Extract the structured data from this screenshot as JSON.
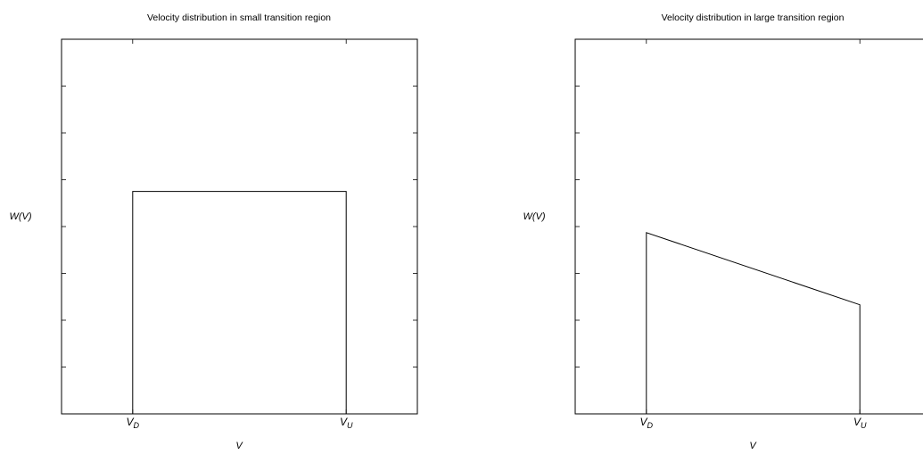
{
  "chart_data": [
    {
      "type": "line",
      "title": "Velocity distribution in small transition region",
      "xlabel": "V",
      "ylabel": "W(V)",
      "x_ticks": [
        {
          "value": 0.2,
          "label": "V",
          "sub": "D"
        },
        {
          "value": 0.8,
          "label": "V",
          "sub": "U"
        }
      ],
      "xlim": [
        0,
        1
      ],
      "ylim": [
        0,
        8
      ],
      "grid": false,
      "series": [
        {
          "x": [
            0,
            0.2,
            0.2,
            0.8,
            0.8,
            1.0
          ],
          "y": [
            0,
            0,
            4.75,
            4.75,
            0,
            0
          ]
        }
      ]
    },
    {
      "type": "line",
      "title": "Velocity distribution in large transition region",
      "xlabel": "V",
      "ylabel": "W(V)",
      "x_ticks": [
        {
          "value": 0.2,
          "label": "V",
          "sub": "D"
        },
        {
          "value": 0.8,
          "label": "V",
          "sub": "U"
        }
      ],
      "xlim": [
        0,
        1
      ],
      "ylim": [
        0,
        8
      ],
      "grid": false,
      "series": [
        {
          "x": [
            0,
            0.2,
            0.2,
            0.8,
            0.8,
            1.0
          ],
          "y": [
            0,
            0,
            3.87,
            2.33,
            0,
            0
          ]
        }
      ]
    }
  ]
}
